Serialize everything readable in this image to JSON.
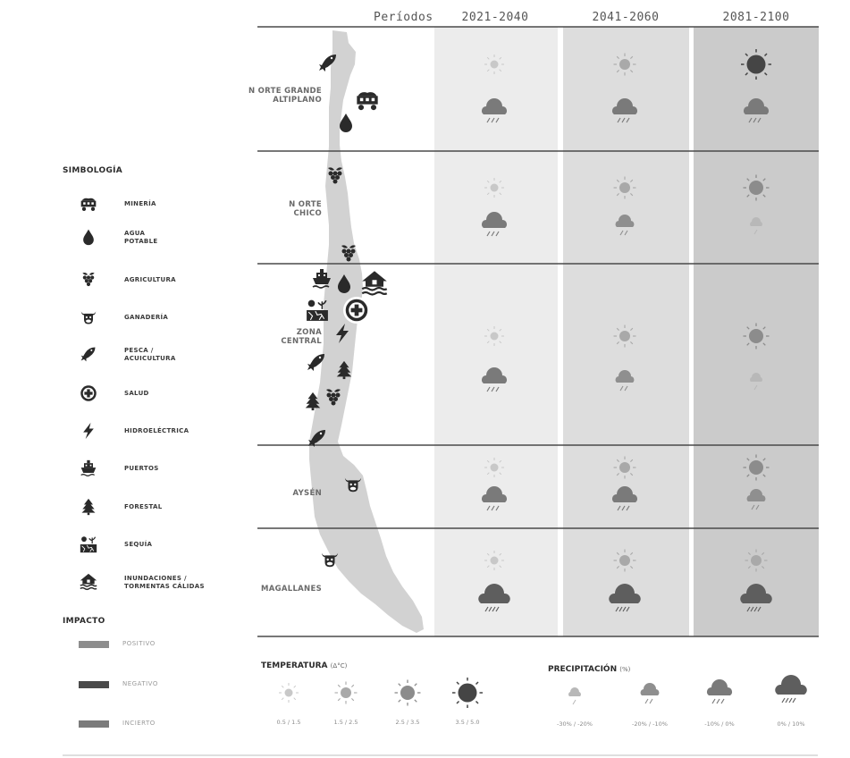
{
  "header": {
    "periods_label": "Períodos"
  },
  "periods": [
    "2021-2040",
    "2041-2060",
    "2081-2100"
  ],
  "regions": [
    {
      "id": "norte-grande",
      "lines": [
        "N ORTE GRANDE",
        "ALTIPLANO"
      ]
    },
    {
      "id": "norte-chico",
      "lines": [
        "N ORTE",
        "CHICO"
      ]
    },
    {
      "id": "zona-central",
      "lines": [
        "ZONA",
        "CENTRAL"
      ]
    },
    {
      "id": "aysen",
      "lines": [
        "AYSÉN"
      ]
    },
    {
      "id": "magallanes",
      "lines": [
        "MAGALLANES"
      ]
    }
  ],
  "legend": {
    "title": "SIMBOLOGÍA",
    "items": [
      {
        "icon": "mining-cart-icon",
        "lines": [
          "MINERÍA"
        ]
      },
      {
        "icon": "water-drop-icon",
        "lines": [
          "AGUA",
          "POTABLE"
        ]
      },
      {
        "icon": "grapes-icon",
        "lines": [
          "AGRICULTURA"
        ]
      },
      {
        "icon": "cow-head-icon",
        "lines": [
          "GANADERÍA"
        ]
      },
      {
        "icon": "fish-icon",
        "lines": [
          "PESCA /",
          "ACUICULTURA"
        ]
      },
      {
        "icon": "health-cross-icon",
        "lines": [
          "SALUD"
        ]
      },
      {
        "icon": "lightning-icon",
        "lines": [
          "HIDROELÉCTRICA"
        ]
      },
      {
        "icon": "ship-icon",
        "lines": [
          "PUERTOS"
        ]
      },
      {
        "icon": "tree-icon",
        "lines": [
          "FORESTAL"
        ]
      },
      {
        "icon": "drought-icon",
        "lines": [
          "SEQUÍA"
        ]
      },
      {
        "icon": "flood-house-icon",
        "lines": [
          "INUNDACIONES /",
          "TORMENTAS CÁLIDAS"
        ]
      }
    ]
  },
  "impact": {
    "title": "IMPACTO",
    "items": [
      {
        "label": "POSITIVO",
        "color": "#8d8d8d"
      },
      {
        "label": "NEGATIVO",
        "color": "#4a4a4a"
      },
      {
        "label": "INCIERTO",
        "color": "#7b7b7b"
      }
    ]
  },
  "temperature_scale": {
    "title": "TEMPERATURA",
    "unit": "(Δ°C)",
    "levels": [
      "0.5 / 1.5",
      "1.5 / 2.5",
      "2.5 / 3.5",
      "3.5 / 5.0"
    ]
  },
  "precipitation_scale": {
    "title": "PRECIPITACIÓN",
    "unit": "(%)",
    "levels": [
      "-30% / -20%",
      "-20% / -10%",
      "-10% / 0%",
      "0% / 10%"
    ]
  },
  "grid": {
    "column_fills": [
      "#ececec",
      "#dddddd",
      "#cbcbcb"
    ],
    "cells": [
      [
        {
          "t": 0,
          "p": 2
        },
        {
          "t": 1,
          "p": 2
        },
        {
          "t": 3,
          "p": 2
        }
      ],
      [
        {
          "t": 0,
          "p": 2
        },
        {
          "t": 1,
          "p": 1
        },
        {
          "t": 2,
          "p": 0
        }
      ],
      [
        {
          "t": 0,
          "p": 2
        },
        {
          "t": 1,
          "p": 1
        },
        {
          "t": 2,
          "p": 0
        }
      ],
      [
        {
          "t": 0,
          "p": 2
        },
        {
          "t": 1,
          "p": 2
        },
        {
          "t": 2,
          "p": 1
        }
      ],
      [
        {
          "t": 0,
          "p": 3
        },
        {
          "t": 1,
          "p": 3
        },
        {
          "t": 1,
          "p": 3
        }
      ]
    ]
  },
  "map_icons": [
    "fish-icon",
    "mining-cart-icon",
    "water-drop-icon",
    "grapes-icon",
    "grapes-icon",
    "ship-icon",
    "water-drop-icon",
    "flood-house-icon",
    "drought-icon",
    "health-cross-icon",
    "lightning-icon",
    "fish-icon",
    "tree-icon",
    "tree-icon",
    "grapes-icon",
    "fish-icon",
    "cow-head-icon",
    "cow-head-icon"
  ]
}
